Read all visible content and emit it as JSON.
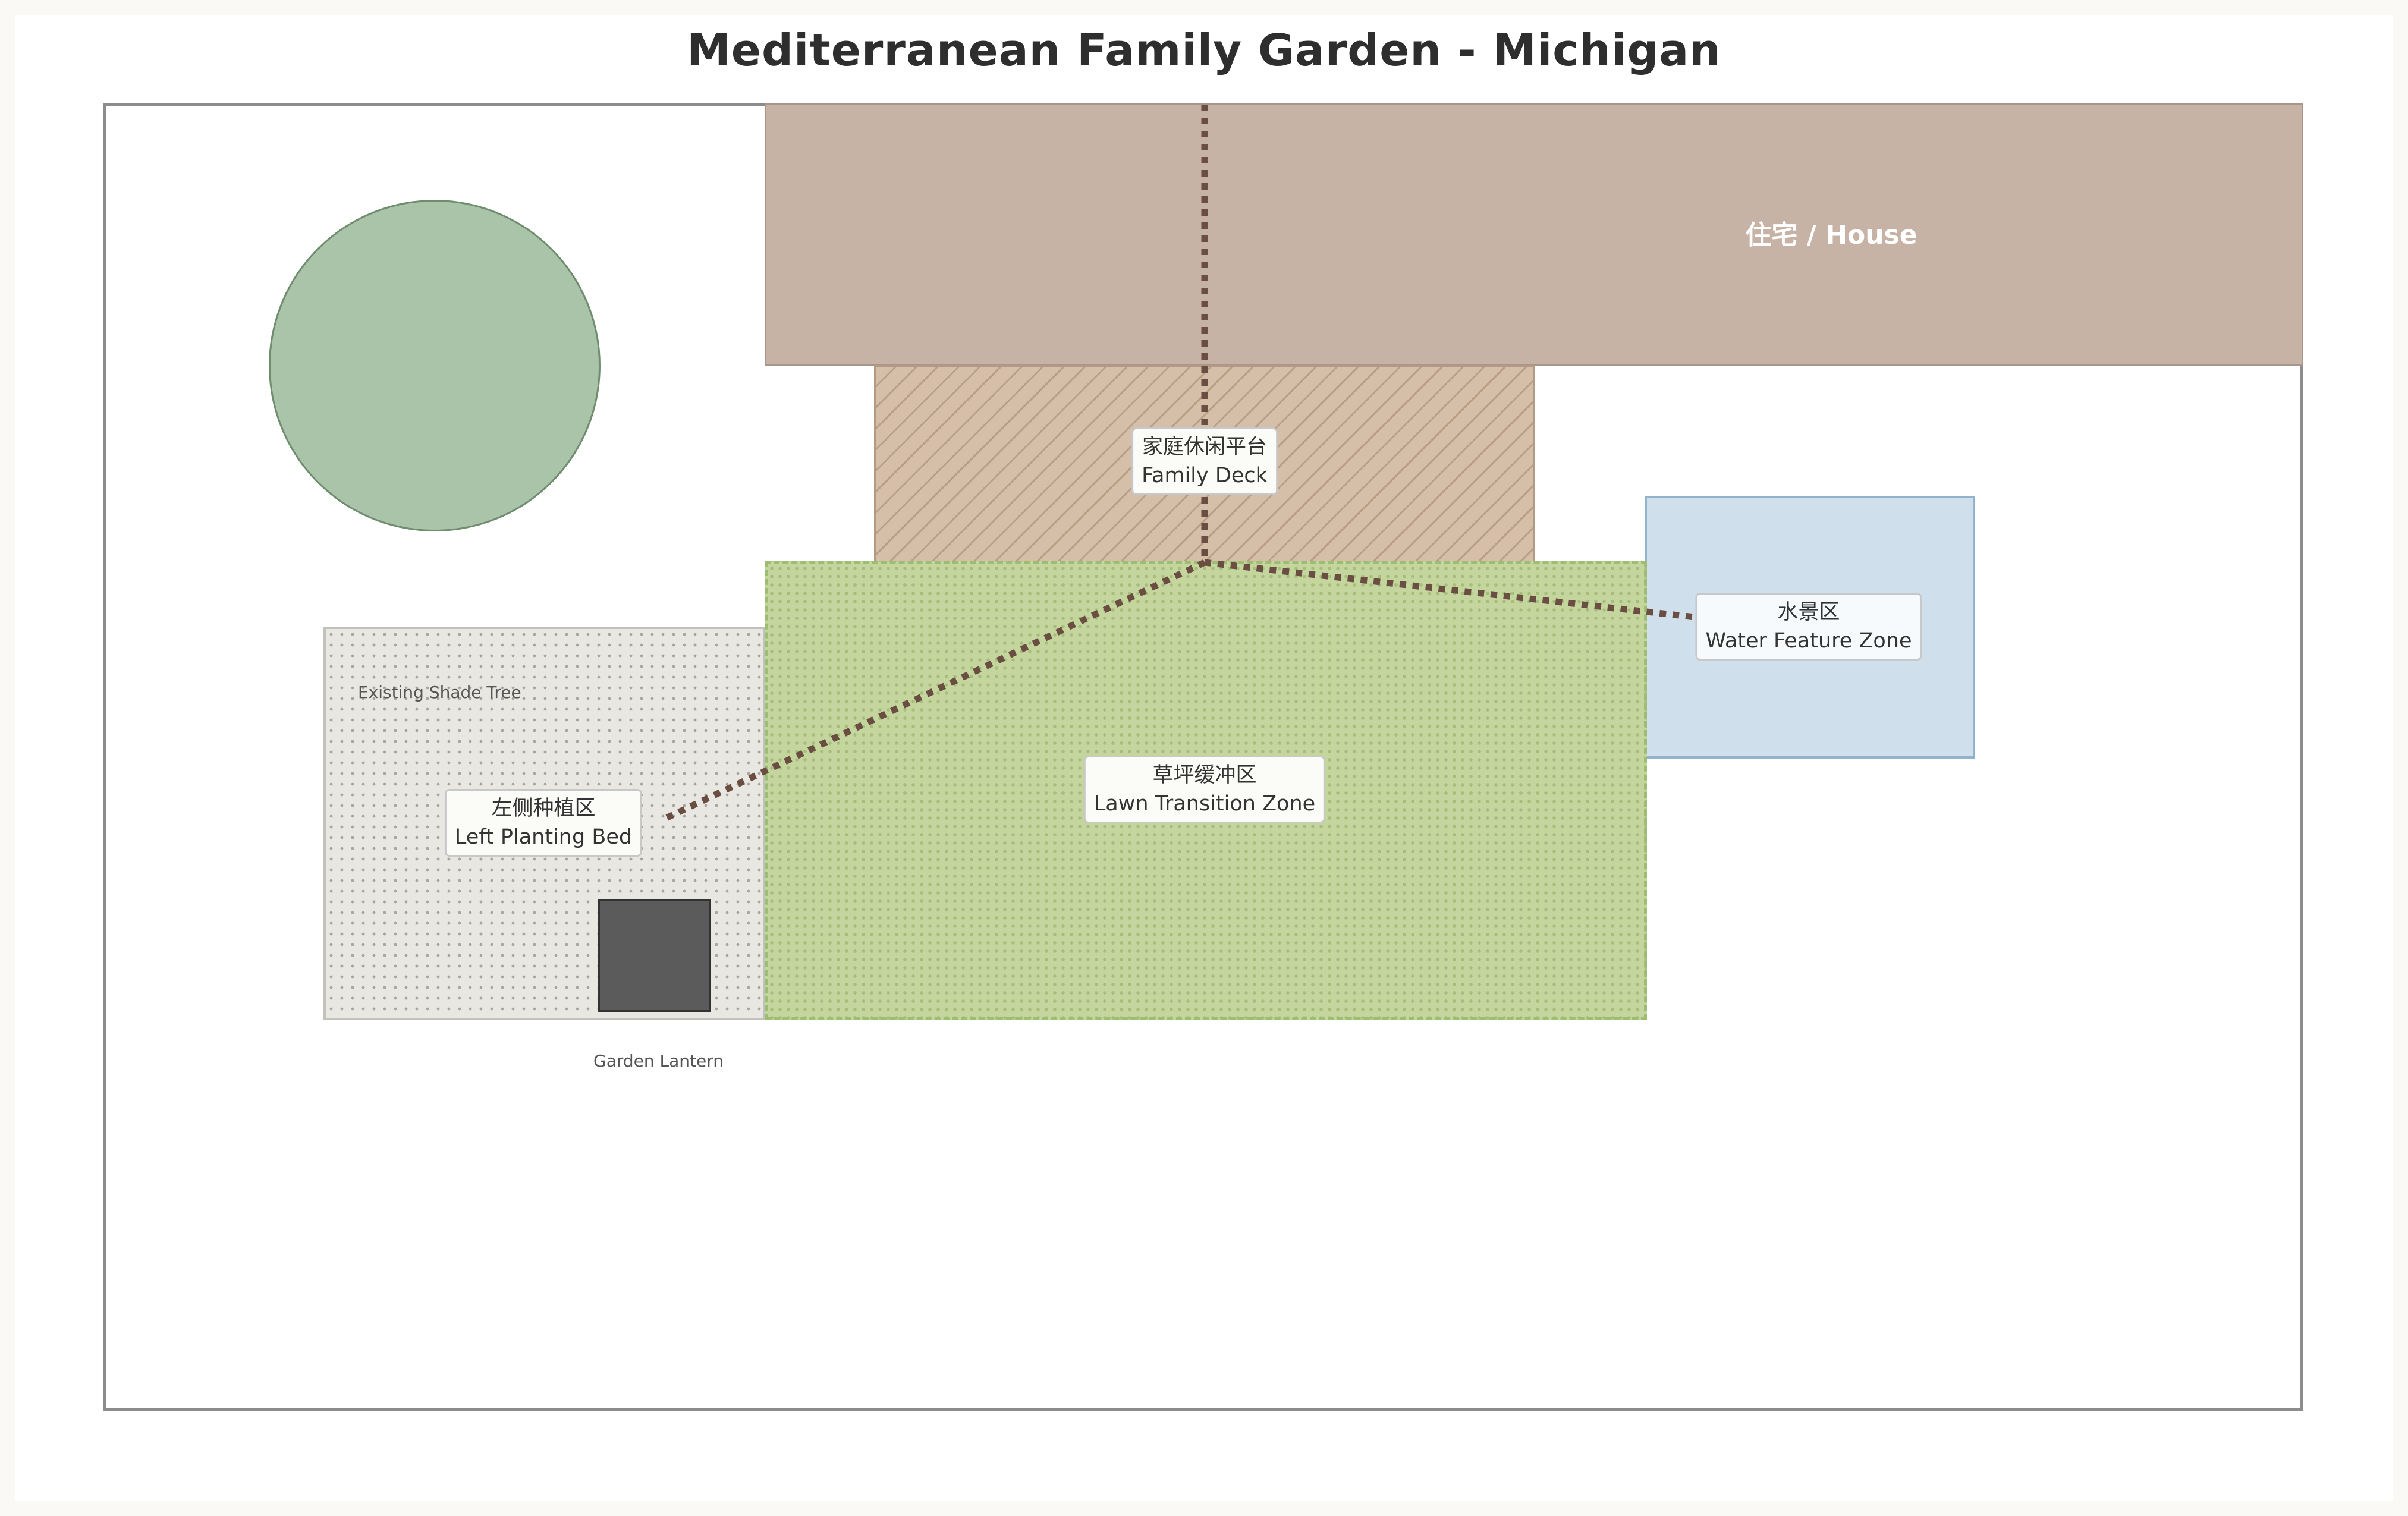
{
  "title": "Mediterranean Family Garden - Michigan",
  "house": {
    "label": "住宅 / House",
    "color": "#c6b3a5"
  },
  "zones": {
    "deck": {
      "zh": "家庭休闲平台",
      "en": "Family Deck",
      "color": "#d5bfa8"
    },
    "water": {
      "zh": "水景区",
      "en": "Water Feature Zone",
      "color": "#cfe0ec"
    },
    "lawn": {
      "zh": "草坪缓冲区",
      "en": "Lawn Transition Zone",
      "color": "#c4d59d"
    },
    "left_bed": {
      "zh": "左侧种植区",
      "en": "Left Planting Bed",
      "color": "#e9e7e2"
    }
  },
  "features": {
    "tree": {
      "label": "Existing Shade Tree",
      "color": "#aac4a9",
      "icon": "tree-canopy-icon"
    },
    "lantern": {
      "label": "Garden Lantern",
      "color": "#5b5b5b",
      "icon": "lantern-icon"
    }
  },
  "path": {
    "style": "dotted",
    "color": "#6b4e42"
  }
}
